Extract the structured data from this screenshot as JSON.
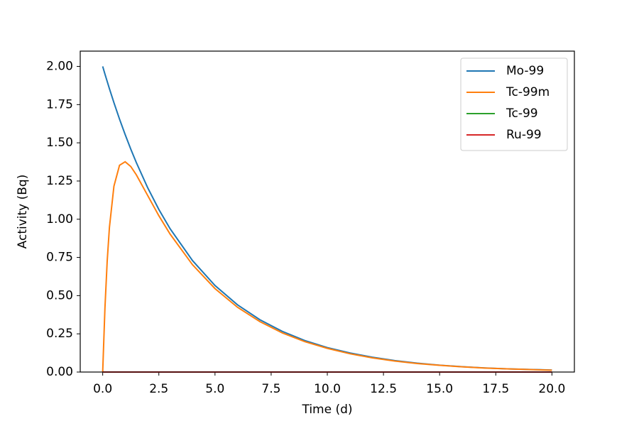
{
  "chart_data": {
    "type": "line",
    "x_label": "Time (d)",
    "y_label": "Activity (Bq)",
    "x": [
      0,
      0.1,
      0.2,
      0.3,
      0.5,
      0.75,
      1,
      1.25,
      1.5,
      2,
      2.5,
      3,
      4,
      5,
      6,
      7,
      8,
      9,
      10,
      11,
      12,
      13,
      14,
      15,
      16,
      17,
      18,
      19,
      20
    ],
    "series": [
      {
        "name": "Mo-99",
        "color": "#1f77b4",
        "values": [
          2.0,
          1.95,
          1.902,
          1.854,
          1.763,
          1.655,
          1.554,
          1.459,
          1.37,
          1.207,
          1.064,
          0.938,
          0.729,
          0.566,
          0.44,
          0.342,
          0.266,
          0.206,
          0.16,
          0.125,
          0.097,
          0.075,
          0.058,
          0.045,
          0.035,
          0.027,
          0.021,
          0.017,
          0.013
        ]
      },
      {
        "name": "Tc-99m",
        "color": "#ff7f0e",
        "values": [
          0,
          0.418,
          0.725,
          0.947,
          1.216,
          1.353,
          1.376,
          1.345,
          1.29,
          1.156,
          1.023,
          0.903,
          0.702,
          0.546,
          0.424,
          0.33,
          0.256,
          0.199,
          0.155,
          0.12,
          0.093,
          0.072,
          0.056,
          0.044,
          0.034,
          0.026,
          0.021,
          0.016,
          0.012
        ]
      },
      {
        "name": "Tc-99",
        "color": "#2ca02c",
        "values": [
          0,
          0,
          0,
          0,
          0,
          0,
          0,
          0,
          0,
          0,
          0,
          0,
          0,
          0,
          0,
          0,
          0,
          0,
          0,
          0,
          0,
          0,
          0,
          0,
          0,
          0,
          0,
          0,
          0
        ]
      },
      {
        "name": "Ru-99",
        "color": "#d62728",
        "values": [
          0,
          0,
          0,
          0,
          0,
          0,
          0,
          0,
          0,
          0,
          0,
          0,
          0,
          0,
          0,
          0,
          0,
          0,
          0,
          0,
          0,
          0,
          0,
          0,
          0,
          0,
          0,
          0,
          0
        ]
      }
    ],
    "xlim": [
      -1,
      21
    ],
    "ylim": [
      0,
      2.1
    ],
    "xticks": [
      {
        "value": 0,
        "label": "0.0"
      },
      {
        "value": 2.5,
        "label": "2.5"
      },
      {
        "value": 5,
        "label": "5.0"
      },
      {
        "value": 7.5,
        "label": "7.5"
      },
      {
        "value": 10,
        "label": "10.0"
      },
      {
        "value": 12.5,
        "label": "12.5"
      },
      {
        "value": 15,
        "label": "15.0"
      },
      {
        "value": 17.5,
        "label": "17.5"
      },
      {
        "value": 20,
        "label": "20.0"
      }
    ],
    "yticks": [
      {
        "value": 0,
        "label": "0.00"
      },
      {
        "value": 0.25,
        "label": "0.25"
      },
      {
        "value": 0.5,
        "label": "0.50"
      },
      {
        "value": 0.75,
        "label": "0.75"
      },
      {
        "value": 1,
        "label": "1.00"
      },
      {
        "value": 1.25,
        "label": "1.25"
      },
      {
        "value": 1.5,
        "label": "1.50"
      },
      {
        "value": 1.75,
        "label": "1.75"
      },
      {
        "value": 2,
        "label": "2.00"
      }
    ],
    "legend": "upper right",
    "grid": false
  }
}
